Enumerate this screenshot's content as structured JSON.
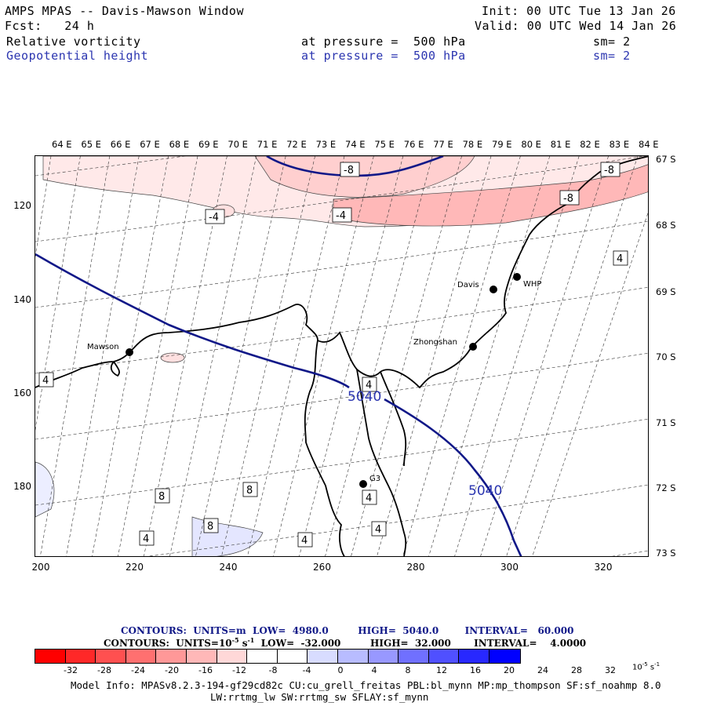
{
  "header": {
    "title": "AMPS MPAS -- Davis-Mawson Window",
    "init": "Init: 00 UTC Tue 13 Jan 26",
    "fcst": "Fcst:   24 h",
    "valid": "Valid: 00 UTC Wed 14 Jan 26",
    "field1": {
      "name": "Relative vorticity",
      "pressure": "at pressure =  500 hPa",
      "smooth": "sm= 2"
    },
    "field2": {
      "name": "Geopotential height",
      "pressure": "at pressure =  500 hPa",
      "smooth": "sm= 2"
    }
  },
  "longitude_labels": [
    "64 E",
    "65 E",
    "66 E",
    "67 E",
    "68 E",
    "69 E",
    "70 E",
    "71 E",
    "72 E",
    "73 E",
    "74 E",
    "75 E",
    "76 E",
    "77 E",
    "78 E",
    "79 E",
    "80 E",
    "81 E",
    "82 E",
    "83 E",
    "84 E"
  ],
  "latitude_labels": [
    "67 S",
    "68 S",
    "69 S",
    "70 S",
    "71 S",
    "72 S",
    "73 S"
  ],
  "y_ticks": [
    "120",
    "140",
    "160",
    "180"
  ],
  "x_ticks": [
    "200",
    "220",
    "240",
    "260",
    "280",
    "300",
    "320"
  ],
  "stations": {
    "mawson": "Mawson",
    "davis": "Davis",
    "zhongshan": "Zhongshan",
    "whp": "WHP",
    "g3": "G3"
  },
  "contour_labels": {
    "vort": [
      "-8",
      "-8",
      "-4",
      "-4",
      "-8",
      "4",
      "4",
      "4",
      "8",
      "8",
      "8",
      "4",
      "4",
      "4",
      "4"
    ],
    "height": [
      "5040",
      "5040"
    ]
  },
  "contours_info": {
    "line1": "CONTOURS:  UNITS=m  LOW=  4980.0         HIGH=  5040.0        INTERVAL=   60.000",
    "line2": "CONTOURS:  UNITS=10",
    "line2_exp": "-5",
    "line2_rest": " s",
    "line2_exp2": "-1",
    "line2_tail": "  LOW=  -32.000         HIGH=  32.000       INTERVAL=    4.0000"
  },
  "colorbar": {
    "labels": [
      "-32",
      "-28",
      "-24",
      "-20",
      "-16",
      "-12",
      "-8",
      "-4",
      "0",
      "4",
      "8",
      "12",
      "16",
      "20",
      "24",
      "28",
      "32"
    ],
    "unit": "10",
    "unit_exp": "-5",
    "unit_s": " s",
    "unit_exp2": "-1",
    "colors": [
      "#ff0000",
      "#ff2828",
      "#ff5050",
      "#ff7070",
      "#ff9898",
      "#ffb8b8",
      "#ffd8d8",
      "#ffffff",
      "#ffffff",
      "#d8dcff",
      "#b8bcff",
      "#9898ff",
      "#7070ff",
      "#5050ff",
      "#2828ff",
      "#0000ff"
    ]
  },
  "model_info": {
    "line1": "Model Info: MPASv8.2.3-194-gf29cd82c CU:cu_grell_freitas PBL:bl_mynn MP:mp_thompson SF:sf_noahmp 8.0",
    "line2": "LW:rrtmg_lw SW:rrtmg_sw SFLAY:sf_mynn"
  }
}
